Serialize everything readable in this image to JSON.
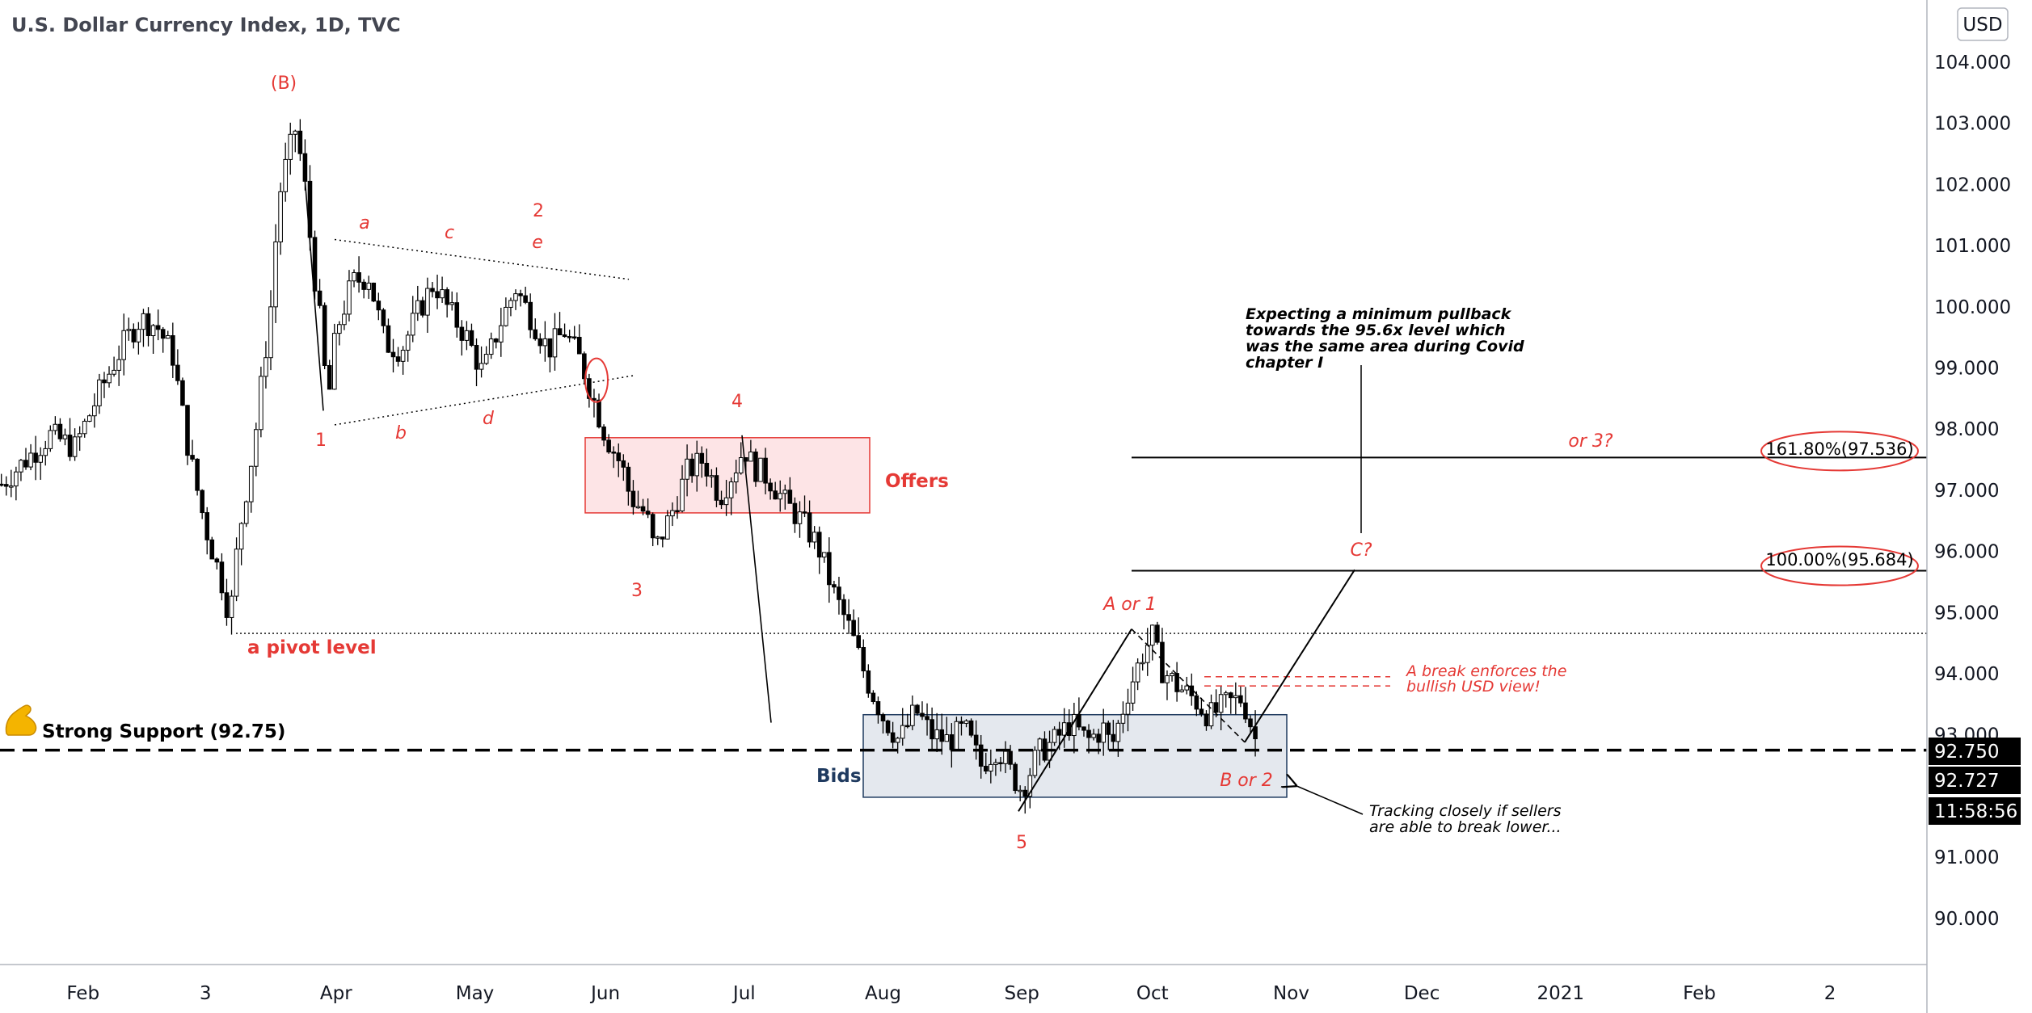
{
  "chart_data": {
    "type": "candlestick",
    "title": "U.S. Dollar Currency Index, 1D, TVC",
    "currency_button": "USD",
    "y_ticks": [
      "104.000",
      "103.000",
      "102.000",
      "101.000",
      "100.000",
      "99.000",
      "98.000",
      "97.000",
      "96.000",
      "95.000",
      "94.000",
      "93.000",
      "91.000",
      "90.000"
    ],
    "ylim": [
      89.3,
      104.6
    ],
    "x_ticks": [
      {
        "label": "Feb",
        "t": 10
      },
      {
        "label": "3",
        "t": 25
      },
      {
        "label": "Apr",
        "t": 41
      },
      {
        "label": "May",
        "t": 58
      },
      {
        "label": "Jun",
        "t": 74
      },
      {
        "label": "Jul",
        "t": 91
      },
      {
        "label": "Aug",
        "t": 108
      },
      {
        "label": "Sep",
        "t": 125
      },
      {
        "label": "Oct",
        "t": 141
      },
      {
        "label": "Nov",
        "t": 158
      },
      {
        "label": "Dec",
        "t": 174
      },
      {
        "label": "2021",
        "t": 191
      },
      {
        "label": "Feb",
        "t": 208
      },
      {
        "label": "2",
        "t": 224
      }
    ],
    "price_labels": [
      {
        "text": "92.750",
        "value": 92.75,
        "style": "black"
      },
      {
        "text": "92.727",
        "value": 92.727,
        "style": "black"
      },
      {
        "text": "11:58:56",
        "value": 92.35,
        "style": "black"
      }
    ],
    "close_path": [
      [
        0,
        97.1
      ],
      [
        3,
        97.5
      ],
      [
        6,
        97.9
      ],
      [
        9,
        97.7
      ],
      [
        12,
        98.6
      ],
      [
        15,
        99.4
      ],
      [
        17,
        99.8
      ],
      [
        19,
        99.7
      ],
      [
        21,
        99.2
      ],
      [
        23,
        97.6
      ],
      [
        25,
        96.4
      ],
      [
        27,
        95.5
      ],
      [
        28,
        94.9
      ],
      [
        29,
        96.2
      ],
      [
        31,
        97.8
      ],
      [
        33,
        100.0
      ],
      [
        34,
        101.8
      ],
      [
        35,
        102.4
      ],
      [
        36,
        102.9
      ],
      [
        37,
        102.2
      ],
      [
        38,
        100.9
      ],
      [
        39,
        99.8
      ],
      [
        40,
        98.4
      ],
      [
        41,
        99.6
      ],
      [
        43,
        100.4
      ],
      [
        45,
        100.5
      ],
      [
        47,
        99.4
      ],
      [
        49,
        99.3
      ],
      [
        51,
        99.9
      ],
      [
        53,
        100.4
      ],
      [
        55,
        99.9
      ],
      [
        57,
        99.5
      ],
      [
        59,
        98.9
      ],
      [
        61,
        99.7
      ],
      [
        63,
        100.3
      ],
      [
        65,
        99.8
      ],
      [
        67,
        99.3
      ],
      [
        69,
        99.6
      ],
      [
        71,
        99.1
      ],
      [
        72,
        98.7
      ],
      [
        74,
        97.9
      ],
      [
        76,
        97.4
      ],
      [
        77,
        96.9
      ],
      [
        79,
        96.6
      ],
      [
        80,
        96.0
      ],
      [
        82,
        96.6
      ],
      [
        84,
        97.3
      ],
      [
        86,
        97.5
      ],
      [
        88,
        96.9
      ],
      [
        90,
        97.4
      ],
      [
        91,
        97.7
      ],
      [
        92,
        97.4
      ],
      [
        94,
        97.2
      ],
      [
        96,
        96.8
      ],
      [
        98,
        96.5
      ],
      [
        100,
        96.1
      ],
      [
        102,
        95.3
      ],
      [
        104,
        94.7
      ],
      [
        106,
        93.9
      ],
      [
        108,
        93.3
      ],
      [
        110,
        92.9
      ],
      [
        112,
        93.4
      ],
      [
        114,
        93.0
      ],
      [
        116,
        92.9
      ],
      [
        118,
        93.1
      ],
      [
        120,
        92.5
      ],
      [
        122,
        92.8
      ],
      [
        124,
        92.3
      ],
      [
        125,
        92.1
      ],
      [
        127,
        92.7
      ],
      [
        129,
        92.9
      ],
      [
        131,
        93.2
      ],
      [
        133,
        92.9
      ],
      [
        135,
        93.1
      ],
      [
        136,
        92.8
      ],
      [
        138,
        93.7
      ],
      [
        140,
        94.4
      ],
      [
        141,
        94.6
      ],
      [
        142,
        94.1
      ],
      [
        144,
        93.8
      ],
      [
        146,
        93.6
      ],
      [
        148,
        93.3
      ],
      [
        150,
        93.5
      ],
      [
        152,
        93.6
      ],
      [
        153,
        93.2
      ],
      [
        154,
        92.75
      ]
    ],
    "annotations": {
      "wave_B": "(B)",
      "wave_1": "1",
      "wave_2": "2",
      "wave_3": "3",
      "wave_4": "4",
      "wave_5": "5",
      "tri_a": "a",
      "tri_b": "b",
      "tri_c": "c",
      "tri_d": "d",
      "tri_e": "e",
      "pivot": "a pivot level",
      "offers": "Offers",
      "bids": "Bids",
      "support": "Strong Support (92.75)",
      "a_or_1": "A or 1",
      "b_or_2": "B or 2",
      "c_q": "C?",
      "or_3": "or 3?",
      "fib_161": "161.80%(97.536)",
      "fib_100": "100.00%(95.684)",
      "break_note": [
        "A break enforces the",
        "bullish USD view!"
      ],
      "pullback_note": [
        "Expecting a minimum pullback",
        "towards the 95.6x level which",
        "was the same area during Covid",
        "chapter I"
      ],
      "tracking_note": [
        "Tracking closely if sellers",
        "are able to break lower..."
      ]
    },
    "levels": {
      "pivot": 94.66,
      "support": 92.75,
      "fib_161": 97.536,
      "fib_100": 95.684,
      "offers_zone": [
        96.63,
        97.86
      ],
      "bids_zone": [
        91.98,
        93.33
      ],
      "break_zone": [
        93.8,
        93.95
      ]
    },
    "colors": {
      "candle": "#000000",
      "annotation": "#e53935",
      "offers_fill": "#fde4e6",
      "offers_border": "#e53935",
      "bids_fill": "#e4e8ee",
      "bids_border": "#1f3a5f"
    }
  }
}
